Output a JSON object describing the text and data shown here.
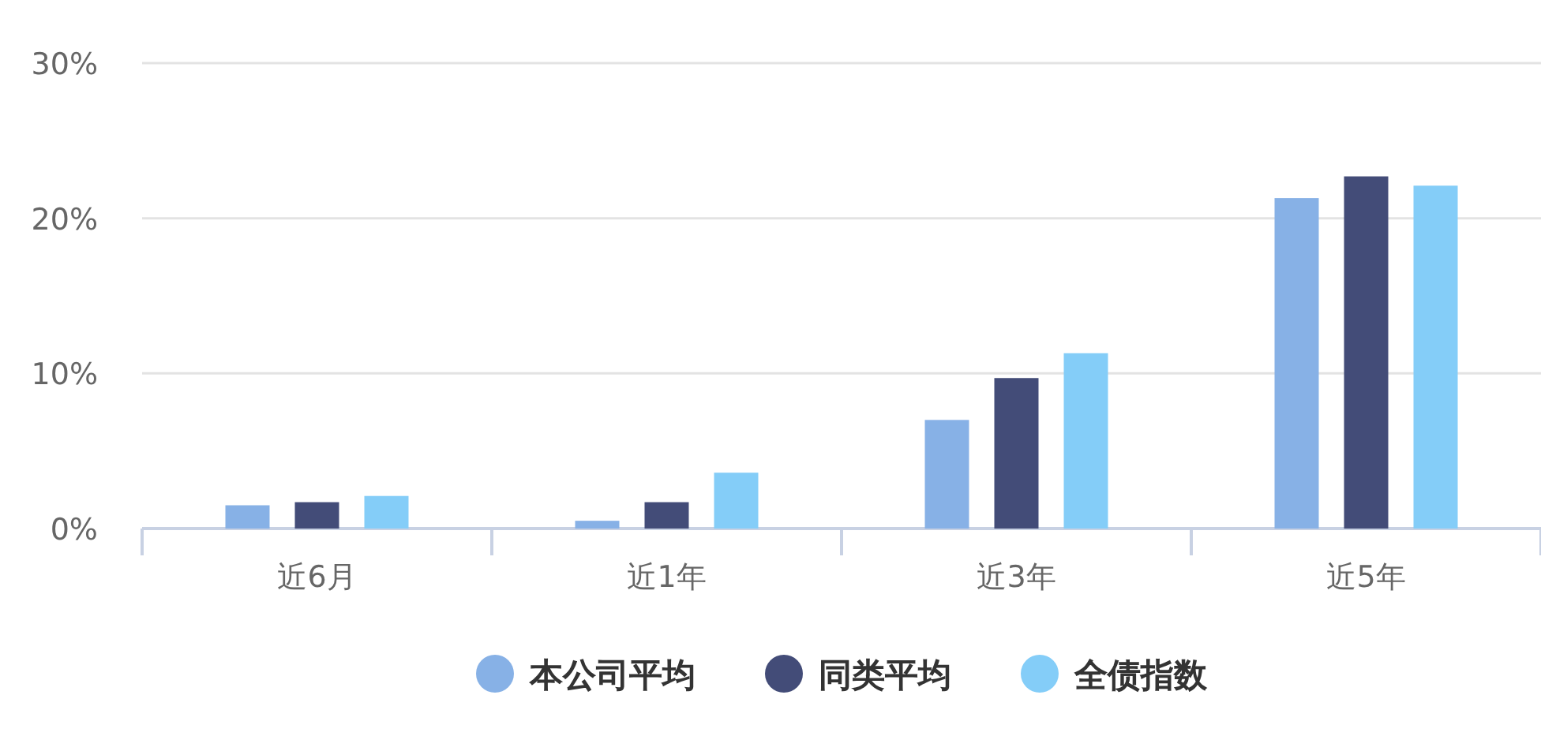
{
  "chart_data": {
    "type": "bar",
    "categories": [
      "近6月",
      "近1年",
      "近3年",
      "近5年"
    ],
    "series": [
      {
        "name": "本公司平均",
        "color": "#87b1e6",
        "values": [
          1.5,
          0.5,
          7.0,
          21.3
        ]
      },
      {
        "name": "同类平均",
        "color": "#434c78",
        "values": [
          1.7,
          1.7,
          9.7,
          22.7
        ]
      },
      {
        "name": "全债指数",
        "color": "#84cdf8",
        "values": [
          2.1,
          3.6,
          11.3,
          22.1
        ]
      }
    ],
    "ylim": [
      0,
      30
    ],
    "yticks": [
      {
        "value": 0,
        "label": "0%"
      },
      {
        "value": 10,
        "label": "10%"
      },
      {
        "value": 20,
        "label": "20%"
      },
      {
        "value": 30,
        "label": "30%"
      }
    ],
    "grid": "y",
    "legend": "bottom"
  }
}
